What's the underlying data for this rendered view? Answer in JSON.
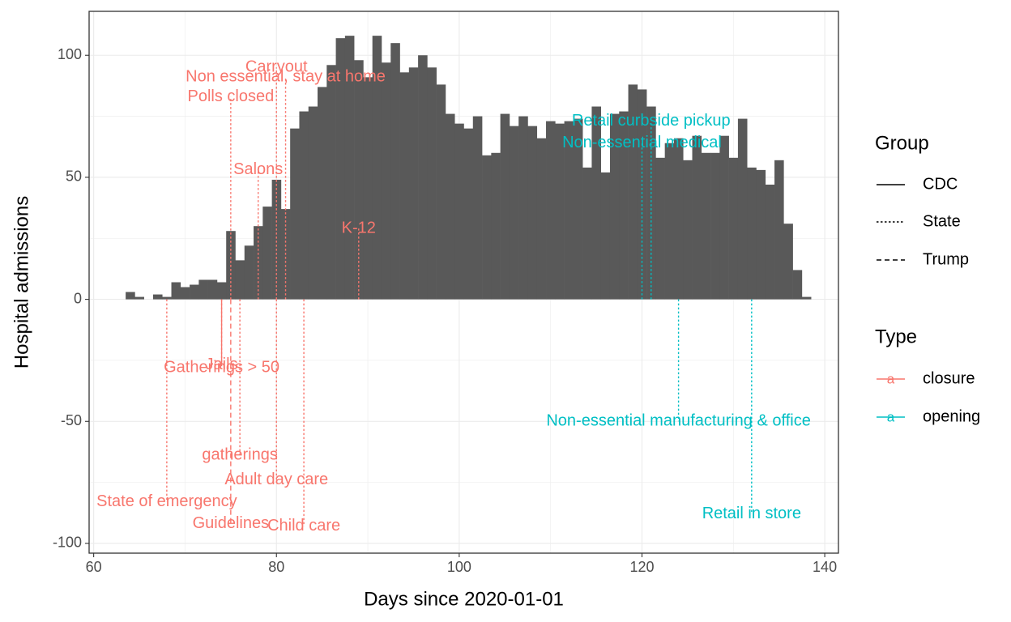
{
  "chart_data": {
    "type": "bar",
    "xlabel": "Days since 2020-01-01",
    "ylabel": "Hospital admissions",
    "xlim": [
      59.5,
      141.5
    ],
    "ylim": [
      -104,
      118
    ],
    "xticks": [
      60,
      80,
      100,
      120,
      140
    ],
    "yticks": [
      -100,
      -50,
      0,
      50,
      100
    ],
    "grid": true,
    "bars": {
      "x": [
        64,
        65,
        66,
        67,
        68,
        69,
        70,
        71,
        72,
        73,
        74,
        75,
        76,
        77,
        78,
        79,
        80,
        81,
        82,
        83,
        84,
        85,
        86,
        87,
        88,
        89,
        90,
        91,
        92,
        93,
        94,
        95,
        96,
        97,
        98,
        99,
        100,
        101,
        102,
        103,
        104,
        105,
        106,
        107,
        108,
        109,
        110,
        111,
        112,
        113,
        114,
        115,
        116,
        117,
        118,
        119,
        120,
        121,
        122,
        123,
        124,
        125,
        126,
        127,
        128,
        129,
        130,
        131,
        132,
        133,
        134,
        135,
        136,
        137,
        138
      ],
      "y": [
        3,
        1,
        0,
        2,
        1,
        7,
        5,
        6,
        8,
        8,
        7,
        28,
        16,
        22,
        30,
        38,
        49,
        37,
        70,
        77,
        79,
        87,
        96,
        107,
        108,
        98,
        91,
        108,
        97,
        105,
        93,
        95,
        100,
        95,
        88,
        76,
        72,
        70,
        75,
        59,
        60,
        76,
        71,
        75,
        71,
        66,
        73,
        72,
        73,
        74,
        54,
        79,
        52,
        76,
        77,
        88,
        86,
        79,
        58,
        64,
        66,
        57,
        67,
        60,
        60,
        67,
        58,
        74,
        54,
        53,
        47,
        57,
        31,
        12,
        1
      ]
    },
    "events": [
      {
        "x": 74,
        "label": "Jails",
        "type": "closure",
        "group": "CDC",
        "y_end": -27
      },
      {
        "x": 68,
        "label": "State of emergency",
        "type": "closure",
        "group": "State",
        "y_end": -83
      },
      {
        "x": 74,
        "label": "Gatherings > 50",
        "type": "closure",
        "group": "State",
        "y_end": -28
      },
      {
        "x": 75,
        "label": "Guidelines",
        "type": "closure",
        "group": "Trump",
        "y_end": -92
      },
      {
        "x": 75,
        "label": "Polls closed",
        "type": "closure",
        "group": "State",
        "y_end": 83
      },
      {
        "x": 76,
        "label": "gatherings",
        "type": "closure",
        "group": "State",
        "y_end": -64
      },
      {
        "x": 78,
        "label": "Salons",
        "type": "closure",
        "group": "State",
        "y_end": 53
      },
      {
        "x": 80,
        "label": "Adult day care",
        "type": "closure",
        "group": "State",
        "y_end": -74
      },
      {
        "x": 80,
        "label": "Carryout",
        "type": "closure",
        "group": "State",
        "y_end": 95
      },
      {
        "x": 81,
        "label": "Non essential, stay at home",
        "type": "closure",
        "group": "State",
        "y_end": 91
      },
      {
        "x": 83,
        "label": "Child care",
        "type": "closure",
        "group": "State",
        "y_end": -93
      },
      {
        "x": 89,
        "label": "K-12",
        "type": "closure",
        "group": "State",
        "y_end": 29
      },
      {
        "x": 120,
        "label": "Non-essential medical",
        "type": "opening",
        "group": "State",
        "y_end": 64
      },
      {
        "x": 121,
        "label": "Retail  curbside pickup",
        "type": "opening",
        "group": "State",
        "y_end": 73
      },
      {
        "x": 124,
        "label": "Non-essential manufacturing & office",
        "type": "opening",
        "group": "State",
        "y_end": -50
      },
      {
        "x": 132,
        "label": "Retail in store",
        "type": "opening",
        "group": "State",
        "y_end": -88
      }
    ],
    "legends": {
      "group": {
        "title": "Group",
        "items": [
          "CDC",
          "State",
          "Trump"
        ]
      },
      "type": {
        "title": "Type",
        "items": [
          "closure",
          "opening"
        ]
      }
    },
    "colors": {
      "bar": "#595959",
      "closure": "#F8766D",
      "opening": "#00BFC4",
      "grid": "#EBEBEB",
      "axis_text": "#4D4D4D"
    }
  }
}
